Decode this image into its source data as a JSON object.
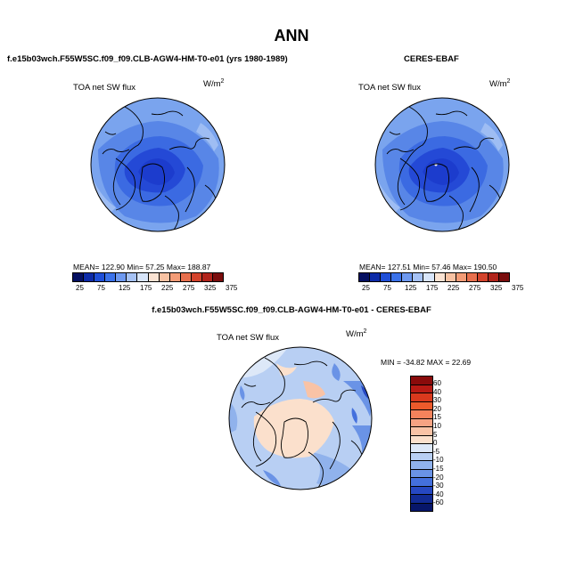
{
  "title": "ANN",
  "panels": [
    {
      "title": "f.e15b03wch.F55W5SC.f09_f09.CLB-AGW4-HM-T0-e01 (yrs 1980-1989)",
      "variable": "TOA net SW flux",
      "units": "W/m",
      "units_exp": "2",
      "stats": "MEAN= 122.90   Min=  57.25   Max= 188.87"
    },
    {
      "title": "CERES-EBAF",
      "variable": "TOA net SW flux",
      "units": "W/m",
      "units_exp": "2",
      "stats": "MEAN= 127.51   Min=  57.46   Max= 190.50"
    },
    {
      "title": "f.e15b03wch.F55W5SC.f09_f09.CLB-AGW4-HM-T0-e01 - CERES-EBAF",
      "variable": "TOA net SW flux",
      "units": "W/m",
      "units_exp": "2",
      "stats": "MIN = -34.82  MAX =  22.69"
    }
  ],
  "abs_colorbar": {
    "ticks": [
      "25",
      "75",
      "125",
      "175",
      "225",
      "275",
      "325",
      "375"
    ],
    "colors": [
      "#051061",
      "#0d2ba8",
      "#1f4fd8",
      "#3b72ea",
      "#6e99f0",
      "#a6c2f5",
      "#d8e5fa",
      "#fbe3d3",
      "#f8c2a3",
      "#f39c77",
      "#e8704e",
      "#d3432c",
      "#b1241b",
      "#7a0d0d"
    ]
  },
  "diff_colorbar": {
    "ticks": [
      "60",
      "40",
      "30",
      "20",
      "15",
      "10",
      "5",
      "0",
      "-5",
      "-10",
      "-15",
      "-20",
      "-30",
      "-40",
      "-60"
    ],
    "colors": [
      "#8a0b0b",
      "#b81a14",
      "#d9391d",
      "#ec5a2b",
      "#f4835c",
      "#f7a383",
      "#f9c3a6",
      "#fbe0cc",
      "#dde8f8",
      "#b8cff3",
      "#90b2ec",
      "#6a93e6",
      "#4470dd",
      "#2648c2",
      "#122b94",
      "#07166a"
    ]
  },
  "map_colors": {
    "ocean_base": "#6f9be9",
    "ocean_mid": "#3f70e3",
    "ocean_deep": "#2148d6",
    "ice_core": "#1b3dcc",
    "diff_base": "#a9c6f3",
    "diff_pos": "#fbe0cc",
    "diff_neg": "#6a93e6"
  }
}
